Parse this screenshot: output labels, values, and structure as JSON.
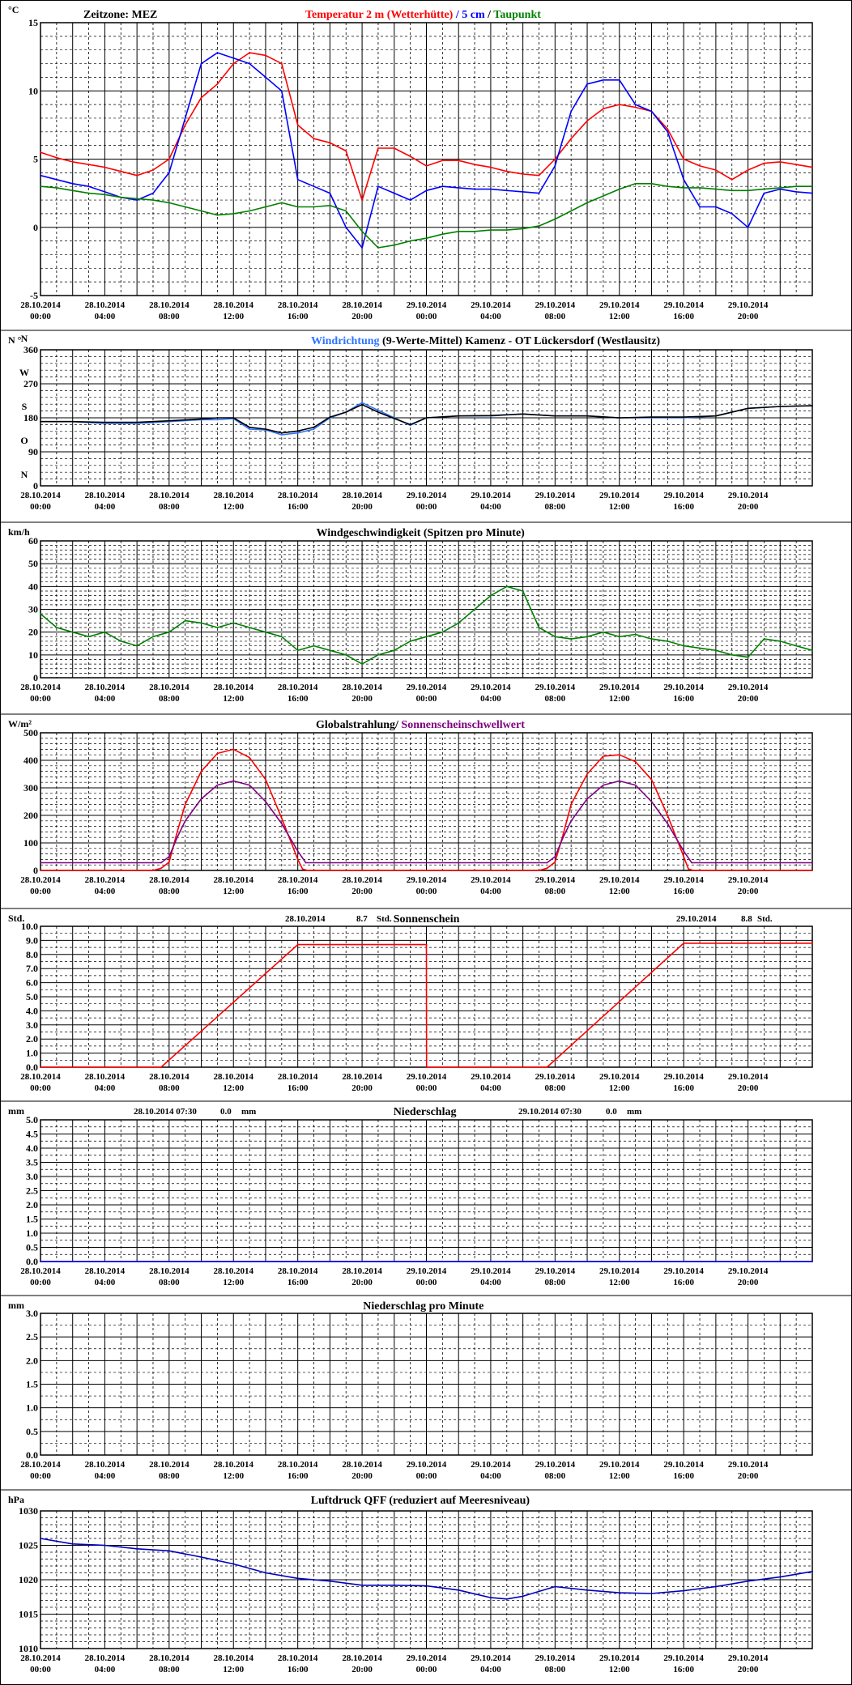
{
  "colors": {
    "red": "#ff0000",
    "blue": "#0000ff",
    "green": "#008000",
    "lightblue": "#2f74ff",
    "black": "#000000",
    "purple": "#800080",
    "darkblue": "#0000c0"
  },
  "x_tick_dates": [
    "28.10.2014",
    "28.10.2014",
    "28.10.2014",
    "28.10.2014",
    "28.10.2014",
    "28.10.2014",
    "29.10.2014",
    "29.10.2014",
    "29.10.2014",
    "29.10.2014",
    "29.10.2014",
    "29.10.2014"
  ],
  "x_tick_times": [
    "00:00",
    "04:00",
    "08:00",
    "12:00",
    "16:00",
    "20:00",
    "00:00",
    "04:00",
    "08:00",
    "12:00",
    "16:00",
    "20:00"
  ],
  "chart_data": [
    {
      "id": "temp",
      "type": "line",
      "unit": "°C",
      "timezone_label": "Zeitzone: MEZ",
      "title_parts": [
        {
          "text": "Temperatur 2 m (Wetterhütte)",
          "color": "#ff0000"
        },
        {
          "text": "  /  ",
          "color": "#0000ff"
        },
        {
          "text": "5 cm",
          "color": "#0000ff"
        },
        {
          "text": " / ",
          "color": "#000000"
        },
        {
          "text": "Taupunkt",
          "color": "#008000"
        }
      ],
      "ylim": [
        -5,
        15
      ],
      "y_ticks": [
        "-5",
        "0",
        "5",
        "10",
        "15"
      ],
      "x_hours": [
        0,
        48
      ],
      "series": [
        {
          "name": "Temperatur 2 m (Wetterhütte)",
          "color": "#ff0000",
          "x": [
            0,
            1,
            2,
            3,
            4,
            5,
            6,
            7,
            8,
            9,
            10,
            11,
            12,
            13,
            14,
            15,
            16,
            17,
            18,
            19,
            20,
            21,
            22,
            23,
            24,
            25,
            26,
            27,
            28,
            29,
            30,
            31,
            32,
            33,
            34,
            35,
            36,
            37,
            38,
            39,
            40,
            41,
            42,
            43,
            44,
            45,
            46,
            47,
            48
          ],
          "y": [
            5.5,
            5.1,
            4.8,
            4.6,
            4.4,
            4.1,
            3.8,
            4.2,
            5.0,
            7.5,
            9.5,
            10.5,
            12.0,
            12.8,
            12.6,
            12.0,
            7.5,
            6.5,
            6.2,
            5.6,
            2.0,
            5.8,
            5.8,
            5.2,
            4.5,
            4.9,
            4.9,
            4.6,
            4.4,
            4.1,
            3.9,
            3.8,
            5.0,
            6.5,
            7.8,
            8.7,
            9.0,
            8.8,
            8.5,
            7.2,
            5.0,
            4.5,
            4.2,
            3.5,
            4.2,
            4.7,
            4.8,
            4.6,
            4.4
          ]
        },
        {
          "name": "5 cm",
          "color": "#0000ff",
          "x": [
            0,
            1,
            2,
            3,
            4,
            5,
            6,
            7,
            8,
            9,
            10,
            11,
            12,
            13,
            14,
            15,
            16,
            17,
            18,
            19,
            20,
            21,
            22,
            23,
            24,
            25,
            26,
            27,
            28,
            29,
            30,
            31,
            32,
            33,
            34,
            35,
            36,
            37,
            38,
            39,
            40,
            41,
            42,
            43,
            44,
            45,
            46,
            47,
            48
          ],
          "y": [
            3.8,
            3.5,
            3.2,
            3.0,
            2.6,
            2.2,
            2.0,
            2.5,
            4.0,
            8.0,
            12.0,
            12.8,
            12.4,
            12.0,
            11.0,
            10.0,
            3.5,
            3.0,
            2.5,
            0.0,
            -1.5,
            3.0,
            2.5,
            2.0,
            2.7,
            3.0,
            2.9,
            2.8,
            2.8,
            2.7,
            2.6,
            2.5,
            4.5,
            8.5,
            10.5,
            10.8,
            10.8,
            9.0,
            8.5,
            7.0,
            3.5,
            1.5,
            1.5,
            1.0,
            0.0,
            2.5,
            2.8,
            2.6,
            2.5
          ]
        },
        {
          "name": "Taupunkt",
          "color": "#008000",
          "x": [
            0,
            1,
            2,
            3,
            4,
            5,
            6,
            7,
            8,
            9,
            10,
            11,
            12,
            13,
            14,
            15,
            16,
            17,
            18,
            19,
            20,
            21,
            22,
            23,
            24,
            25,
            26,
            27,
            28,
            29,
            30,
            31,
            32,
            33,
            34,
            35,
            36,
            37,
            38,
            39,
            40,
            41,
            42,
            43,
            44,
            45,
            46,
            47,
            48
          ],
          "y": [
            3.0,
            2.9,
            2.7,
            2.5,
            2.4,
            2.2,
            2.1,
            2.0,
            1.8,
            1.5,
            1.2,
            0.9,
            1.0,
            1.2,
            1.5,
            1.8,
            1.5,
            1.5,
            1.6,
            1.2,
            -0.3,
            -1.5,
            -1.3,
            -1.0,
            -0.8,
            -0.5,
            -0.3,
            -0.3,
            -0.2,
            -0.2,
            -0.1,
            0.1,
            0.6,
            1.2,
            1.8,
            2.3,
            2.8,
            3.2,
            3.2,
            3.0,
            2.9,
            2.9,
            2.8,
            2.7,
            2.7,
            2.8,
            2.9,
            3.0,
            3.0
          ]
        }
      ]
    },
    {
      "id": "winddir",
      "type": "line",
      "unit": "N °",
      "title_parts": [
        {
          "text": "Windrichtung",
          "color": "#2f74ff"
        },
        {
          "text": " (9-Werte-Mittel)",
          "color": "#000000"
        },
        {
          "text": "        Kamenz - OT Lückersdorf (Westlausitz)",
          "color": "#000000"
        }
      ],
      "ylim": [
        0,
        360
      ],
      "y_ticks": [
        "0",
        "90",
        "180",
        "270",
        "360"
      ],
      "y_side_labels": [
        "N",
        "O",
        "S",
        "W",
        "N"
      ],
      "y_side_values": [
        0,
        90,
        180,
        270,
        360
      ],
      "x_hours": [
        0,
        48
      ],
      "series": [
        {
          "name": "Windrichtung",
          "color": "#2f74ff",
          "x": [
            0,
            2,
            4,
            6,
            8,
            10,
            11,
            12,
            13,
            14,
            15,
            16,
            17,
            18,
            19,
            20,
            21,
            22,
            23,
            24,
            26,
            28,
            30,
            32,
            34,
            36,
            38,
            40,
            42,
            44,
            46,
            48
          ],
          "y": [
            170,
            170,
            165,
            165,
            170,
            175,
            175,
            178,
            150,
            148,
            135,
            140,
            150,
            180,
            195,
            220,
            200,
            180,
            160,
            180,
            185,
            185,
            190,
            185,
            185,
            180,
            180,
            180,
            185,
            205,
            210,
            212
          ]
        },
        {
          "name": "9-Werte-Mittel",
          "color": "#000000",
          "x": [
            0,
            2,
            4,
            6,
            8,
            10,
            11,
            12,
            13,
            14,
            15,
            16,
            17,
            18,
            19,
            20,
            21,
            22,
            23,
            24,
            26,
            28,
            30,
            32,
            34,
            36,
            38,
            40,
            42,
            44,
            46,
            48
          ],
          "y": [
            170,
            170,
            168,
            168,
            172,
            177,
            180,
            180,
            155,
            150,
            140,
            145,
            155,
            182,
            195,
            215,
            195,
            178,
            162,
            180,
            185,
            186,
            190,
            185,
            185,
            180,
            182,
            182,
            185,
            205,
            210,
            212
          ]
        }
      ]
    },
    {
      "id": "windspeed",
      "type": "line",
      "unit": "km/h",
      "title_parts": [
        {
          "text": "Windgeschwindigkeit (Spitzen pro Minute)",
          "color": "#000000"
        }
      ],
      "ylim": [
        0,
        60
      ],
      "y_ticks": [
        "0",
        "10",
        "20",
        "30",
        "40",
        "50",
        "60"
      ],
      "x_hours": [
        0,
        48
      ],
      "series": [
        {
          "name": "Windgeschwindigkeit",
          "color": "#008000",
          "x": [
            0,
            1,
            2,
            3,
            4,
            5,
            6,
            7,
            8,
            9,
            10,
            11,
            12,
            13,
            14,
            15,
            16,
            17,
            18,
            19,
            20,
            21,
            22,
            23,
            24,
            25,
            26,
            27,
            28,
            29,
            30,
            31,
            32,
            33,
            34,
            35,
            36,
            37,
            38,
            39,
            40,
            41,
            42,
            43,
            44,
            45,
            46,
            47,
            48
          ],
          "y": [
            28,
            22,
            20,
            18,
            20,
            16,
            14,
            18,
            20,
            25,
            24,
            22,
            24,
            22,
            20,
            18,
            12,
            14,
            12,
            10,
            6,
            10,
            12,
            16,
            18,
            20,
            24,
            30,
            36,
            40,
            38,
            22,
            18,
            17,
            18,
            20,
            18,
            19,
            17,
            16,
            14,
            13,
            12,
            10,
            9,
            17,
            16,
            14,
            12
          ]
        }
      ]
    },
    {
      "id": "radiation",
      "type": "line",
      "unit": "W/m²",
      "title_parts": [
        {
          "text": "Globalstrahlung",
          "color": "#000000"
        },
        {
          "text": "/ ",
          "color": "#000000"
        },
        {
          "text": "Sonnenscheinschwellwert",
          "color": "#800080"
        }
      ],
      "ylim": [
        0,
        500
      ],
      "y_ticks": [
        "0",
        "100",
        "200",
        "300",
        "400",
        "500"
      ],
      "x_hours": [
        0,
        48
      ],
      "series": [
        {
          "name": "Globalstrahlung",
          "color": "#ff0000",
          "x": [
            0,
            7,
            7.5,
            8,
            8.5,
            9,
            10,
            11,
            12,
            13,
            14,
            15,
            16,
            16.3,
            16.6,
            24,
            31,
            31.5,
            32,
            32.5,
            33,
            34,
            35,
            36,
            37,
            38,
            39,
            40,
            40.3,
            40.6,
            48
          ],
          "y": [
            0,
            0,
            8,
            30,
            140,
            240,
            360,
            425,
            440,
            410,
            330,
            190,
            40,
            5,
            0,
            0,
            0,
            8,
            30,
            130,
            240,
            350,
            415,
            420,
            395,
            330,
            200,
            50,
            5,
            0,
            0
          ]
        },
        {
          "name": "Sonnenscheinschwellwert",
          "color": "#800080",
          "x": [
            0,
            7.5,
            8,
            8.5,
            9,
            10,
            11,
            12,
            13,
            14,
            15,
            16,
            16.5,
            31.5,
            32,
            32.5,
            33,
            34,
            35,
            36,
            37,
            38,
            39,
            40,
            40.5,
            48
          ],
          "y": [
            28,
            28,
            50,
            120,
            180,
            260,
            310,
            325,
            310,
            250,
            170,
            70,
            28,
            28,
            50,
            120,
            180,
            260,
            310,
            325,
            310,
            250,
            170,
            70,
            28,
            28
          ]
        }
      ]
    },
    {
      "id": "sunshine",
      "type": "line",
      "unit": "Std.",
      "title_parts": [
        {
          "text": "Sonnenschein",
          "color": "#000000"
        }
      ],
      "annotations": [
        {
          "date": "28.10.2014",
          "value": "8.7",
          "unit": "Std."
        },
        {
          "date": "29.10.2014",
          "value": "8.8",
          "unit": "Std."
        }
      ],
      "ylim": [
        0,
        10
      ],
      "y_ticks": [
        "0.0",
        "1.0",
        "2.0",
        "3.0",
        "4.0",
        "5.0",
        "6.0",
        "7.0",
        "8.0",
        "9.0",
        "10.0"
      ],
      "x_hours": [
        0,
        48
      ],
      "series": [
        {
          "name": "Sonnenschein",
          "color": "#ff0000",
          "x": [
            0,
            7.5,
            16,
            24,
            24.01,
            31.5,
            40,
            48
          ],
          "y": [
            0,
            0,
            8.7,
            8.7,
            0,
            0,
            8.8,
            8.8
          ]
        }
      ]
    },
    {
      "id": "precip",
      "type": "line",
      "unit": "mm",
      "title_parts": [
        {
          "text": "Niederschlag",
          "color": "#000000"
        }
      ],
      "annotations": [
        {
          "date": "28.10.2014 07:30",
          "value": "0.0",
          "unit": "mm"
        },
        {
          "date": "29.10.2014 07:30",
          "value": "0.0",
          "unit": "mm"
        }
      ],
      "ylim": [
        0,
        5
      ],
      "y_ticks": [
        "0.0",
        "0.5",
        "1.0",
        "1.5",
        "2.0",
        "2.5",
        "3.0",
        "3.5",
        "4.0",
        "4.5",
        "5.0"
      ],
      "x_hours": [
        0,
        48
      ],
      "series": [
        {
          "name": "Niederschlag",
          "color": "#0000ff",
          "x": [
            0,
            48
          ],
          "y": [
            0,
            0
          ]
        }
      ]
    },
    {
      "id": "precipmin",
      "type": "line",
      "unit": "mm",
      "title_parts": [
        {
          "text": "Niederschlag pro Minute",
          "color": "#000000"
        }
      ],
      "ylim": [
        0,
        3
      ],
      "y_ticks": [
        "0.0",
        "0.5",
        "1.0",
        "1.5",
        "2.0",
        "2.5",
        "3.0"
      ],
      "x_hours": [
        0,
        48
      ],
      "series": []
    },
    {
      "id": "pressure",
      "type": "line",
      "unit": "hPa",
      "title_parts": [
        {
          "text": "Luftdruck QFF (reduziert auf Meeresniveau)",
          "color": "#000000"
        }
      ],
      "ylim": [
        1010,
        1030
      ],
      "y_ticks": [
        "1010",
        "1015",
        "1020",
        "1025",
        "1030"
      ],
      "x_hours": [
        0,
        48
      ],
      "series": [
        {
          "name": "Luftdruck QFF",
          "color": "#0000c0",
          "x": [
            0,
            2,
            4,
            6,
            8,
            10,
            12,
            14,
            16,
            18,
            20,
            22,
            24,
            26,
            28,
            29,
            30,
            32,
            34,
            36,
            38,
            40,
            42,
            44,
            46,
            48
          ],
          "y": [
            1026,
            1025.2,
            1025,
            1024.5,
            1024.2,
            1023.3,
            1022.3,
            1021,
            1020.2,
            1019.8,
            1019.2,
            1019.2,
            1019.1,
            1018.5,
            1017.4,
            1017.2,
            1017.6,
            1019,
            1018.5,
            1018.1,
            1018,
            1018.4,
            1019,
            1019.8,
            1020.4,
            1021.2
          ]
        }
      ]
    }
  ]
}
